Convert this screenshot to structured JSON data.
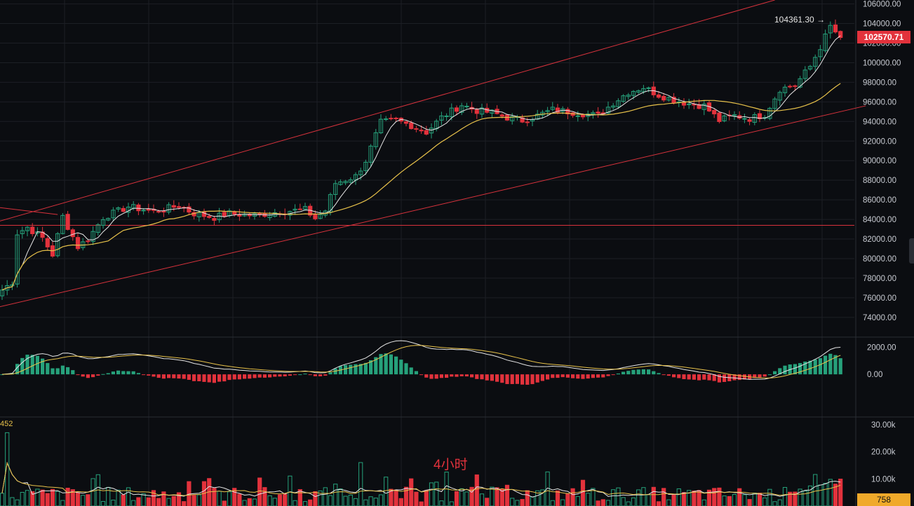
{
  "chart_data": {
    "type": "candlestick",
    "timeframe_label": "4小时",
    "price_axis": {
      "range": [
        72200,
        106400
      ],
      "ticks": [
        106000,
        104000,
        102000,
        100000,
        98000,
        96000,
        94000,
        92000,
        90000,
        88000,
        86000,
        84000,
        82000,
        80000,
        78000,
        76000,
        74000
      ],
      "tick_labels": [
        "106000.00",
        "104000.00",
        "102000.00",
        "100000.00",
        "98000.00",
        "96000.00",
        "94000.00",
        "92000.00",
        "90000.00",
        "88000.00",
        "86000.00",
        "84000.00",
        "82000.00",
        "80000.00",
        "78000.00",
        "76000.00",
        "74000.00"
      ]
    },
    "current_price": "102570.71",
    "high_marker": "104361.30",
    "horizontal_line": 83400,
    "candle_count": 167,
    "price_anchors": [
      [
        0,
        76800
      ],
      [
        2,
        77600
      ],
      [
        3,
        82600
      ],
      [
        5,
        83200
      ],
      [
        8,
        82100
      ],
      [
        10,
        80400
      ],
      [
        12,
        84300
      ],
      [
        15,
        81200
      ],
      [
        17,
        82000
      ],
      [
        20,
        84200
      ],
      [
        25,
        85300
      ],
      [
        30,
        84800
      ],
      [
        35,
        85400
      ],
      [
        38,
        84600
      ],
      [
        42,
        84200
      ],
      [
        45,
        84600
      ],
      [
        50,
        84400
      ],
      [
        55,
        84800
      ],
      [
        60,
        85000
      ],
      [
        62,
        84100
      ],
      [
        64,
        84900
      ],
      [
        66,
        87700
      ],
      [
        70,
        88400
      ],
      [
        72,
        90000
      ],
      [
        75,
        93900
      ],
      [
        78,
        94100
      ],
      [
        81,
        93600
      ],
      [
        84,
        92900
      ],
      [
        87,
        94400
      ],
      [
        91,
        95700
      ],
      [
        94,
        95100
      ],
      [
        97,
        94900
      ],
      [
        100,
        94400
      ],
      [
        103,
        94100
      ],
      [
        106,
        94600
      ],
      [
        109,
        95200
      ],
      [
        112,
        95000
      ],
      [
        115,
        94800
      ],
      [
        118,
        94600
      ],
      [
        121,
        95900
      ],
      [
        124,
        97000
      ],
      [
        127,
        97500
      ],
      [
        130,
        96700
      ],
      [
        133,
        96200
      ],
      [
        136,
        95800
      ],
      [
        139,
        95600
      ],
      [
        142,
        94100
      ],
      [
        145,
        94600
      ],
      [
        148,
        94300
      ],
      [
        151,
        94700
      ],
      [
        154,
        97300
      ],
      [
        157,
        97700
      ],
      [
        160,
        99600
      ],
      [
        162,
        101600
      ],
      [
        164,
        103700
      ],
      [
        166,
        102570
      ]
    ],
    "ma_fast_end": 102500,
    "ma_slow_end": 97500,
    "channel": {
      "upper": {
        "from": [
          -2,
          83600
        ],
        "to": [
          153,
          106400
        ]
      },
      "lower": {
        "from": [
          -2,
          74900
        ],
        "to": [
          171,
          95600
        ]
      },
      "short_line": {
        "from": [
          -2,
          85300
        ],
        "to": [
          11,
          84500
        ]
      }
    },
    "macd_axis": {
      "ticks": [
        2000,
        0
      ],
      "tick_labels": [
        "2000.00",
        "0.00"
      ],
      "range": [
        -3000,
        2600
      ]
    },
    "volume_axis": {
      "ticks": [
        30000,
        20000,
        10000
      ],
      "tick_labels": [
        "30.00k",
        "20.00k",
        "10.00k"
      ],
      "range": [
        0,
        32000
      ]
    },
    "volume_current": "758",
    "volume_left_value": "452"
  },
  "colors": {
    "up": "#26a17b",
    "down": "#e2323c",
    "ma_fast": "#e6e6e6",
    "ma_slow": "#e8c24a",
    "grid": "#1c1f25",
    "channel": "#d7323c"
  }
}
